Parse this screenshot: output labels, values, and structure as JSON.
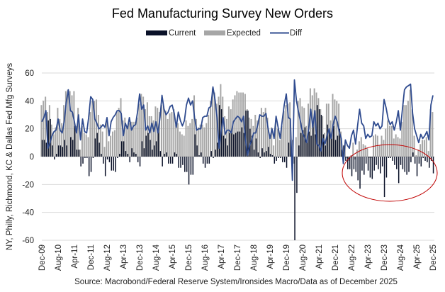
{
  "chart_data": {
    "type": "bar",
    "title": "Fed Manufacturing Survey New Orders",
    "ylabel": "NY, Philly, Richmond, KC & Dallas Fed Mfg Surveys",
    "xlabel": "",
    "source": "Source: Macrobond/Federal Reserve System/Ironsides Macro/Data as of December 2025",
    "ylim": [
      -60,
      60
    ],
    "yticks": [
      60,
      40,
      20,
      0,
      -20,
      -40,
      -60
    ],
    "grid": true,
    "legend_placement": "top-center",
    "start_month": "Dec-2009",
    "frequency": "monthly",
    "xtick_labels": [
      "Dec-09",
      "Aug-10",
      "Apr-11",
      "Dec-11",
      "Aug-12",
      "Apr-13",
      "Dec-13",
      "Aug-14",
      "Apr-15",
      "Dec-15",
      "Aug-16",
      "Apr-17",
      "Dec-17",
      "Aug-18",
      "Apr-19",
      "Dec-19",
      "Aug-20",
      "Apr-21",
      "Dec-21",
      "Aug-22",
      "Apr-23",
      "Dec-23",
      "Aug-24",
      "Apr-25",
      "Dec-25"
    ],
    "xtick_every_months": 8,
    "annotation": {
      "type": "ellipse",
      "color": "#c00000",
      "highlights": "Aug-22 to Dec-25 negative current readings"
    },
    "series": [
      {
        "name": "Current",
        "type": "bar",
        "color": "#0a1128",
        "values": [
          12,
          12,
          10,
          26,
          27,
          8,
          -2,
          2,
          8,
          8,
          7,
          12,
          8,
          0,
          14,
          12,
          22,
          5,
          5,
          -7,
          -5,
          -1,
          -1,
          -14,
          -11,
          -1,
          13,
          17,
          10,
          2,
          -5,
          -14,
          -2,
          -4,
          -10,
          -10,
          -11,
          -1,
          2,
          11,
          11,
          4,
          2,
          -4,
          6,
          3,
          2,
          -4,
          -7,
          11,
          6,
          15,
          17,
          12,
          5,
          8,
          11,
          18,
          4,
          -7,
          2,
          3,
          -5,
          -5,
          -5,
          3,
          2,
          -8,
          -8,
          -6,
          -11,
          -11,
          -20,
          -13,
          -13,
          16,
          8,
          1,
          3,
          -5,
          -8,
          -5,
          -5,
          4,
          -1,
          5,
          10,
          37,
          34,
          15,
          13,
          8,
          17,
          17,
          16,
          17,
          18,
          18,
          21,
          17,
          33,
          33,
          20,
          15,
          5,
          13,
          3,
          -1,
          6,
          3,
          4,
          7,
          2,
          1,
          -5,
          -3,
          -1,
          -1,
          -4,
          -4,
          -8,
          10,
          12,
          12,
          -60,
          -26,
          8,
          17,
          19,
          21,
          12,
          18,
          15,
          23,
          16,
          37,
          34,
          30,
          16,
          8,
          23,
          18,
          13,
          22,
          12,
          15,
          20,
          5,
          8,
          -3,
          -9,
          -9,
          -14,
          -9,
          -11,
          -17,
          -23,
          -10,
          -13,
          -5,
          -10,
          -15,
          -16,
          -10,
          -6,
          -9,
          -12,
          -7,
          -29,
          -15,
          -1,
          -1,
          -3,
          -6,
          -9,
          -19,
          -6,
          -9,
          -11,
          -13,
          -11,
          -4,
          3,
          -5,
          -14,
          -5,
          -7,
          -1,
          -3,
          -4,
          -8,
          -3,
          -12
        ]
      },
      {
        "name": "Expected",
        "type": "bar",
        "color": "#a6a6a6",
        "values": [
          37,
          40,
          43,
          32,
          37,
          23,
          16,
          21,
          35,
          27,
          24,
          37,
          47,
          48,
          47,
          44,
          47,
          22,
          35,
          5,
          22,
          17,
          16,
          14,
          32,
          40,
          40,
          41,
          30,
          23,
          18,
          7,
          26,
          11,
          15,
          18,
          19,
          32,
          35,
          42,
          26,
          28,
          22,
          24,
          25,
          25,
          25,
          28,
          38,
          45,
          43,
          34,
          39,
          29,
          29,
          26,
          36,
          35,
          32,
          37,
          36,
          33,
          27,
          31,
          32,
          34,
          23,
          24,
          18,
          16,
          15,
          26,
          22,
          24,
          27,
          44,
          27,
          21,
          23,
          23,
          21,
          24,
          30,
          40,
          49,
          46,
          38,
          43,
          52,
          43,
          29,
          27,
          36,
          34,
          41,
          44,
          47,
          46,
          46,
          46,
          45,
          34,
          28,
          27,
          22,
          30,
          26,
          29,
          35,
          32,
          35,
          28,
          15,
          21,
          8,
          26,
          20,
          12,
          22,
          33,
          37,
          38,
          39,
          -5,
          -5,
          14,
          40,
          42,
          36,
          35,
          22,
          38,
          49,
          44,
          49,
          46,
          42,
          34,
          29,
          17,
          38,
          38,
          26,
          45,
          41,
          40,
          38,
          18,
          3,
          9,
          -1,
          -3,
          1,
          10,
          -2,
          5,
          11,
          14,
          9,
          8,
          6,
          -1,
          -1,
          15,
          16,
          15,
          8,
          15,
          12,
          20,
          26,
          22,
          22,
          13,
          16,
          14,
          13,
          25,
          37,
          37,
          40,
          48,
          34,
          15,
          1,
          5,
          9,
          12,
          12,
          14,
          4,
          34,
          32
        ]
      },
      {
        "name": "Diff",
        "type": "line",
        "color": "#2f4b8f",
        "values": [
          25,
          28,
          33,
          6,
          10,
          15,
          18,
          19,
          27,
          19,
          17,
          25,
          39,
          48,
          33,
          32,
          25,
          17,
          30,
          12,
          27,
          18,
          17,
          28,
          43,
          41,
          27,
          24,
          20,
          21,
          23,
          21,
          28,
          15,
          25,
          28,
          30,
          33,
          33,
          31,
          15,
          24,
          20,
          28,
          19,
          22,
          23,
          32,
          45,
          34,
          37,
          19,
          22,
          17,
          24,
          18,
          25,
          17,
          28,
          44,
          34,
          30,
          32,
          36,
          37,
          31,
          21,
          32,
          26,
          22,
          26,
          37,
          42,
          37,
          40,
          28,
          19,
          20,
          20,
          28,
          29,
          29,
          35,
          36,
          50,
          41,
          28,
          6,
          18,
          28,
          16,
          19,
          19,
          17,
          25,
          27,
          29,
          28,
          25,
          29,
          12,
          1,
          8,
          12,
          17,
          17,
          23,
          30,
          29,
          29,
          31,
          21,
          13,
          20,
          13,
          29,
          21,
          13,
          26,
          37,
          45,
          28,
          27,
          -17,
          55,
          40,
          32,
          25,
          17,
          14,
          10,
          20,
          34,
          21,
          33,
          9,
          8,
          4,
          13,
          9,
          15,
          20,
          13,
          23,
          29,
          25,
          18,
          13,
          -5,
          12,
          8,
          6,
          15,
          19,
          9,
          22,
          34,
          24,
          22,
          13,
          16,
          14,
          15,
          25,
          22,
          24,
          20,
          22,
          41,
          35,
          27,
          23,
          25,
          19,
          25,
          33,
          19,
          34,
          48,
          50,
          51,
          52,
          31,
          20,
          15,
          10,
          16,
          13,
          15,
          18,
          12,
          37,
          44
        ]
      }
    ]
  }
}
